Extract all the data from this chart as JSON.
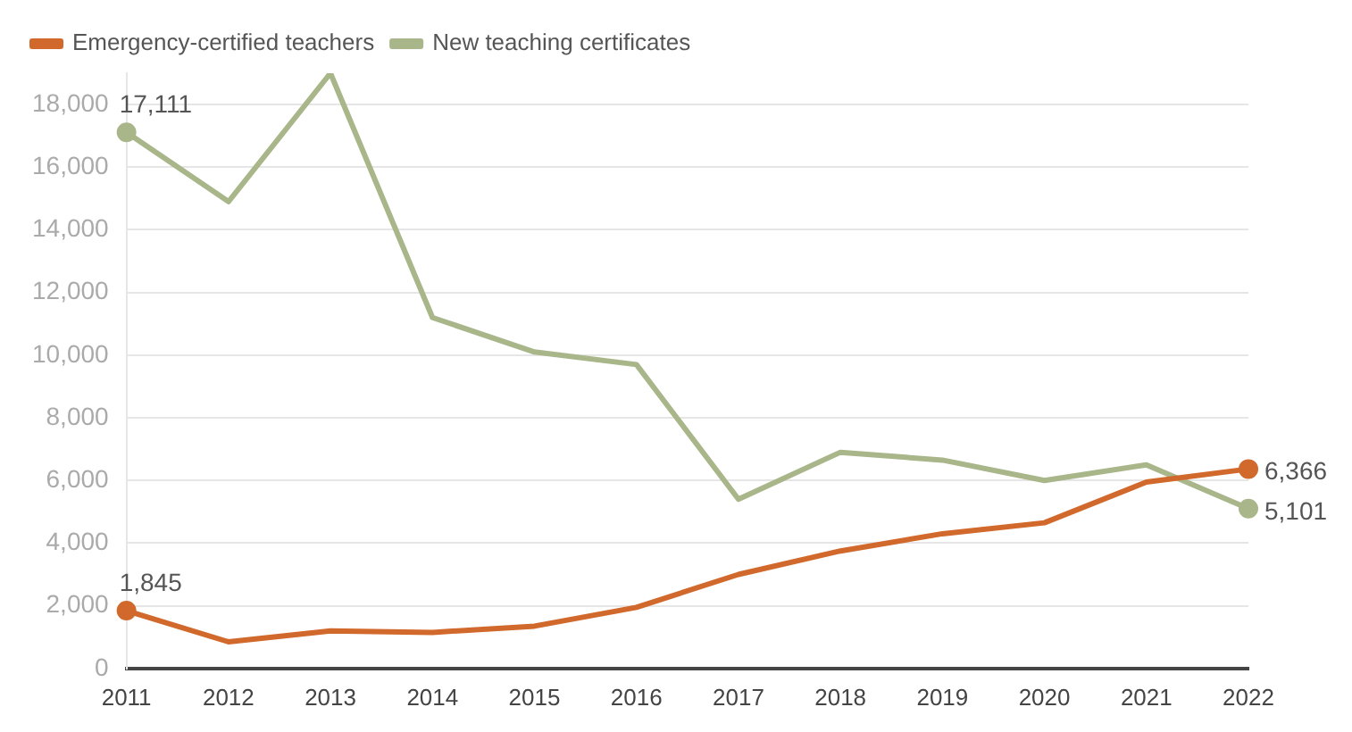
{
  "chart_data": {
    "type": "line",
    "categories": [
      "2011",
      "2012",
      "2013",
      "2014",
      "2015",
      "2016",
      "2017",
      "2018",
      "2019",
      "2020",
      "2021",
      "2022"
    ],
    "series": [
      {
        "name": "Emergency-certified teachers",
        "color": "#d2692c",
        "values": [
          1845,
          850,
          1200,
          1150,
          1350,
          1950,
          3000,
          3750,
          4300,
          4650,
          5950,
          6366
        ],
        "value_labels": [
          "1,845",
          null,
          null,
          null,
          null,
          null,
          null,
          null,
          null,
          null,
          null,
          "6,366"
        ]
      },
      {
        "name": "New teaching certificates",
        "color": "#a9b68a",
        "values": [
          17111,
          14900,
          19000,
          11200,
          10100,
          9700,
          5400,
          6900,
          6650,
          6000,
          6500,
          5101
        ],
        "value_labels": [
          "17,111",
          null,
          null,
          null,
          null,
          null,
          null,
          null,
          null,
          null,
          null,
          "5,101"
        ]
      }
    ],
    "ylim": [
      0,
      19000
    ],
    "yticks": [
      0,
      {
        "value": 2000,
        "label": "2,000"
      },
      {
        "value": 4000,
        "label": "4,000"
      },
      {
        "value": 6000,
        "label": "6,000"
      },
      {
        "value": 8000,
        "label": "8,000"
      },
      {
        "value": 10000,
        "label": "10,000"
      },
      {
        "value": 12000,
        "label": "12,000"
      },
      {
        "value": 14000,
        "label": "14,000"
      },
      {
        "value": 16000,
        "label": "16,000"
      },
      {
        "value": 18000,
        "label": "18,000"
      }
    ],
    "grid": "y",
    "legend": "top left"
  }
}
